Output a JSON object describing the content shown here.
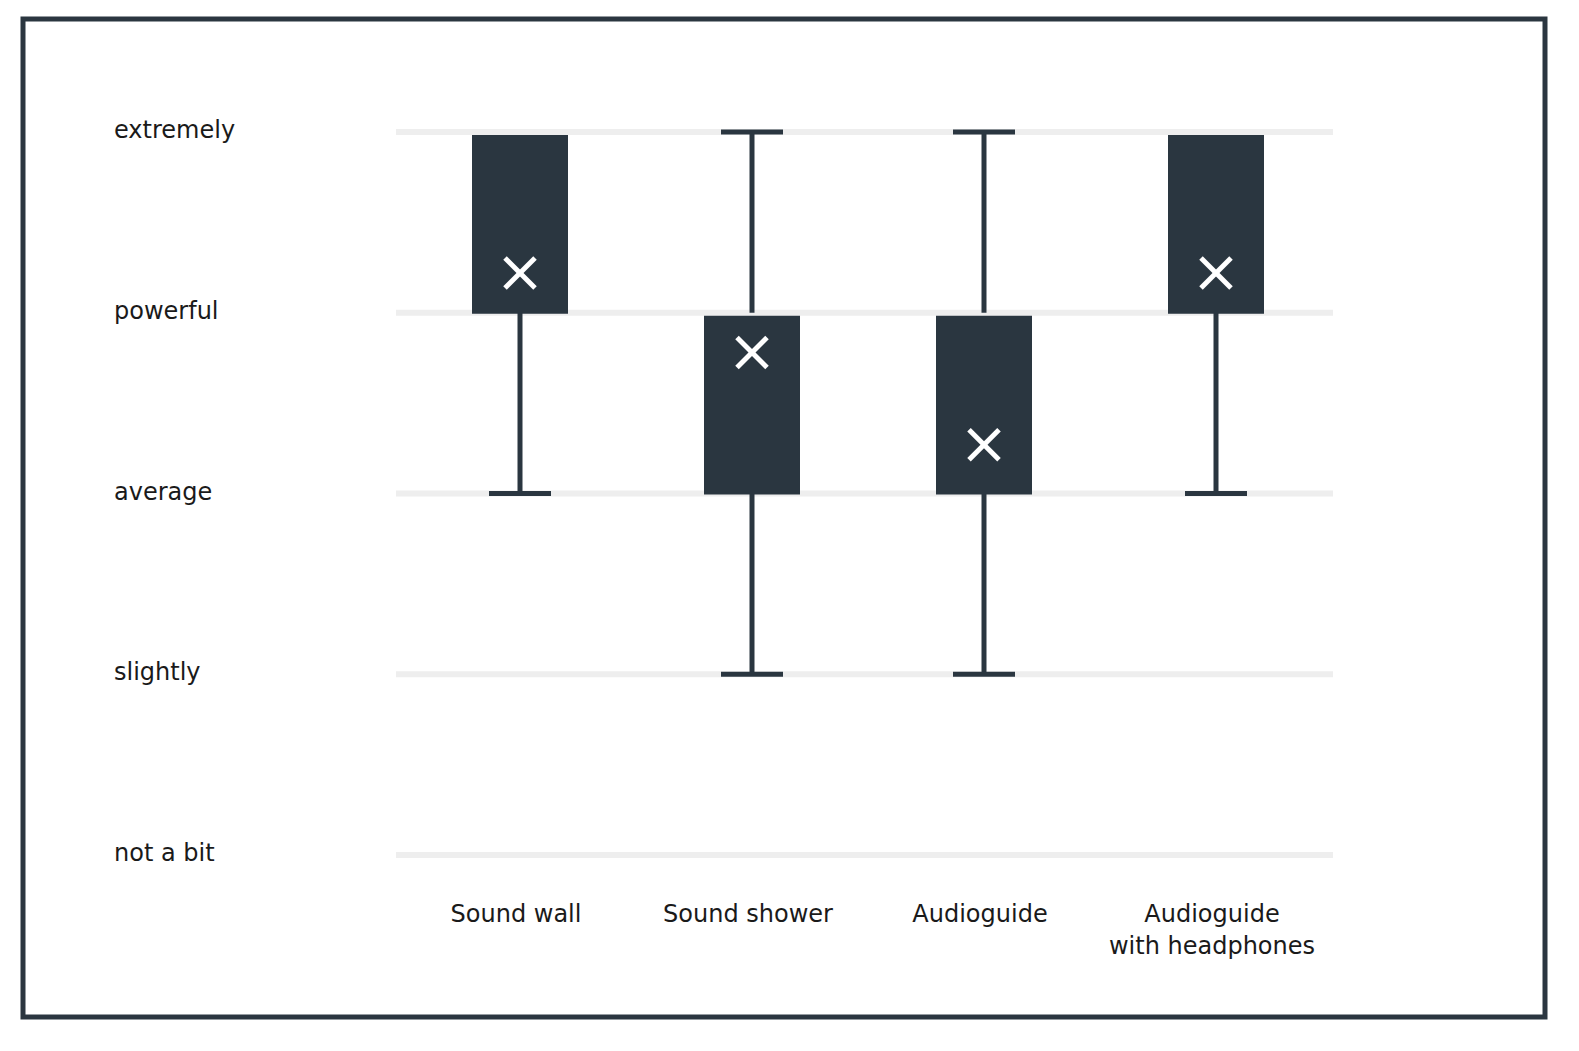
{
  "chart_data": {
    "type": "box",
    "categories": [
      "Sound wall",
      "Sound shower",
      "Audioguide",
      "Audioguide\nwith headphones"
    ],
    "min": [
      2,
      1,
      1,
      2
    ],
    "q1": [
      3,
      2,
      2,
      3
    ],
    "q3": [
      4,
      3,
      3,
      4
    ],
    "max": [
      4,
      4,
      4,
      4
    ],
    "mean": [
      3.22,
      2.78,
      2.27,
      3.22
    ],
    "color": "#2a3640",
    "ylim": [
      0,
      4
    ],
    "yticks": [
      {
        "value": 0,
        "label": "not a bit"
      },
      {
        "value": 1,
        "label": "slightly"
      },
      {
        "value": 2,
        "label": "average"
      },
      {
        "value": 3,
        "label": "powerful"
      },
      {
        "value": 4,
        "label": "extremely"
      }
    ],
    "grid": true
  }
}
